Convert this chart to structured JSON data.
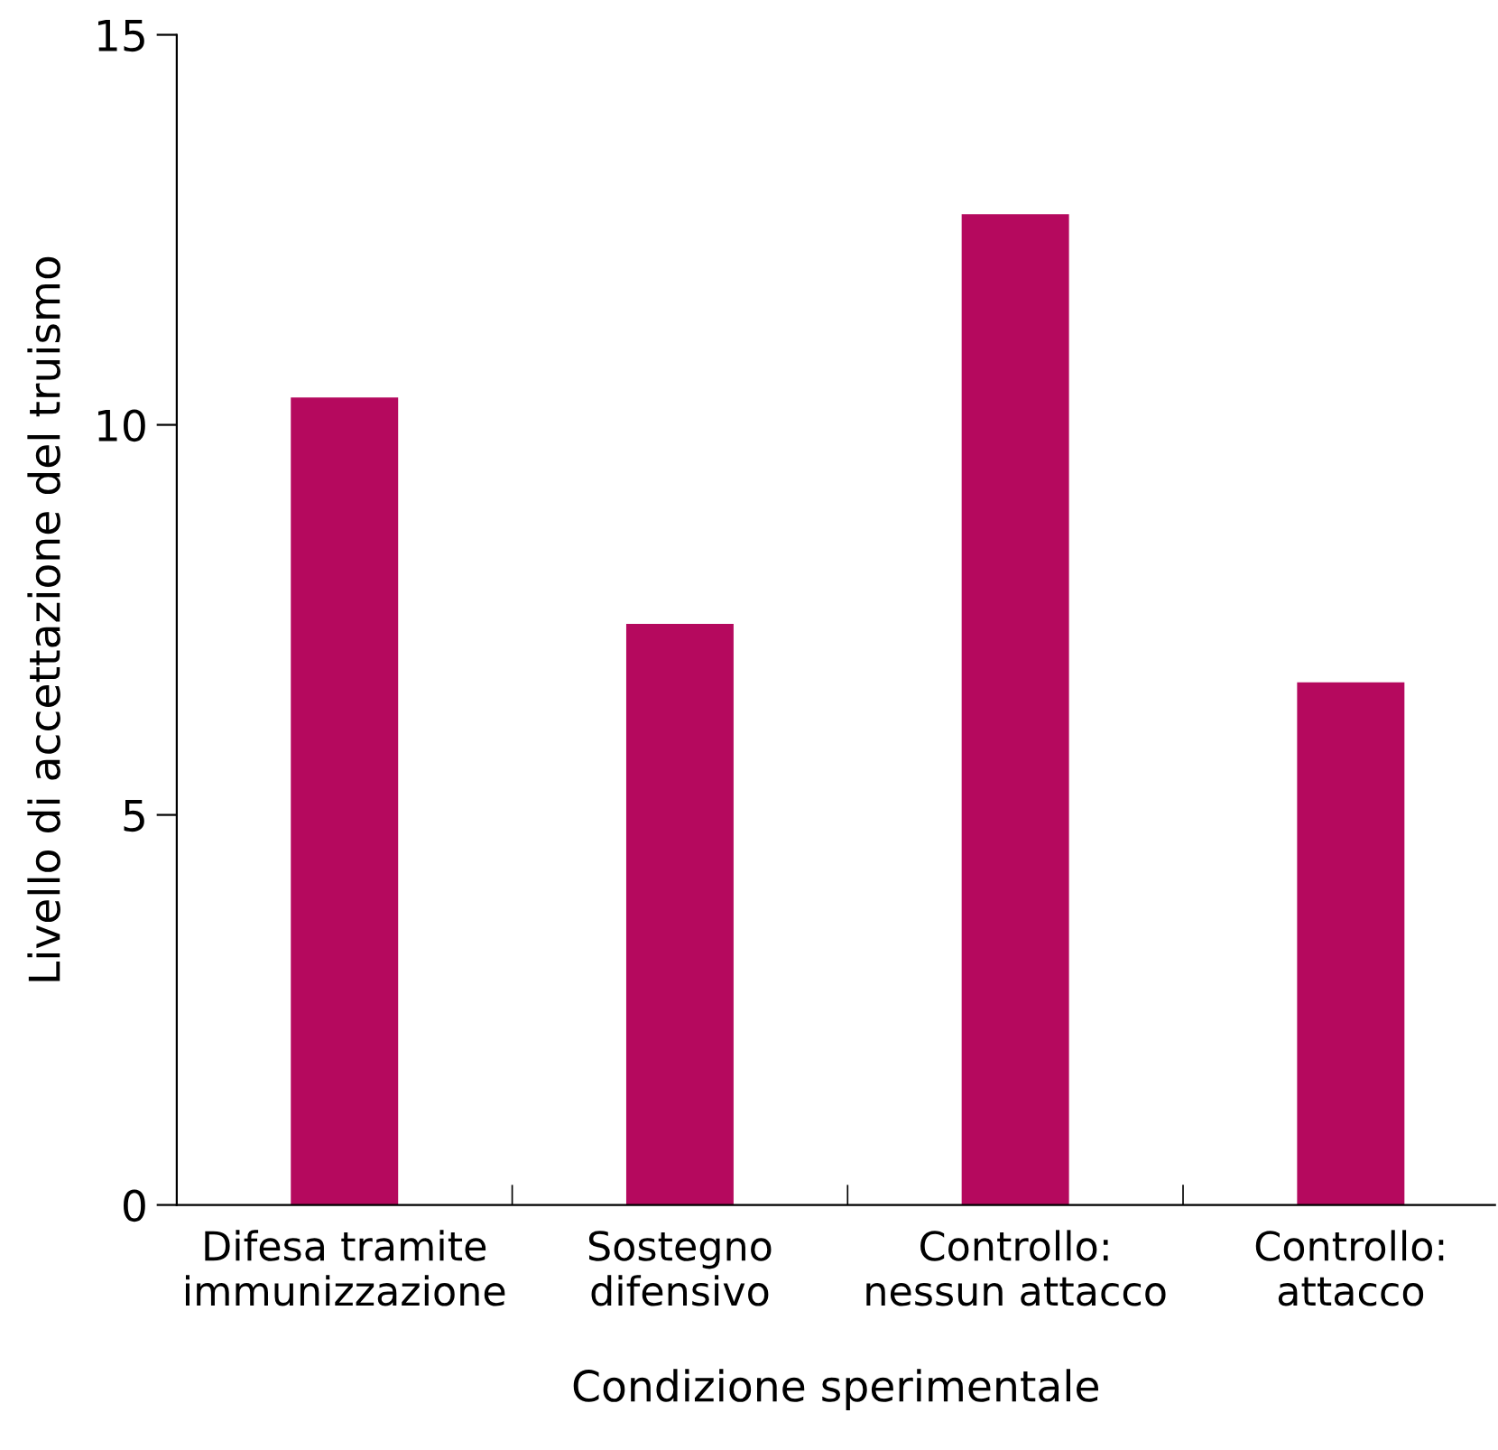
{
  "chart_data": {
    "type": "bar",
    "categories": [
      "Difesa tramite\nimmunizzazione",
      "Sostegno\ndifensivo",
      "Controllo:\nnessun attacco",
      "Controllo:\nattacco"
    ],
    "values": [
      10.35,
      7.45,
      12.7,
      6.7
    ],
    "color": "#b5095e",
    "xlabel": "Condizione sperimentale",
    "ylabel": "Livello di accettazione del truismo",
    "ylim": [
      0,
      15
    ],
    "yticks": [
      0,
      5,
      10,
      15
    ],
    "grid": false,
    "legend": false
  }
}
